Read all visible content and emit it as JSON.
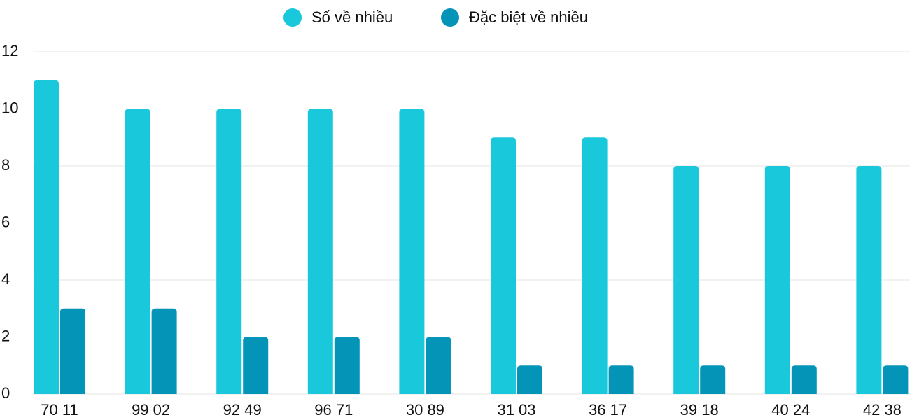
{
  "chart_data": {
    "type": "bar",
    "categories": [
      "70 11",
      "99 02",
      "92 49",
      "96 71",
      "30 89",
      "31 03",
      "36 17",
      "39 18",
      "40 24",
      "42 38"
    ],
    "series": [
      {
        "name": "Số về nhiều",
        "color": "#1ac8db",
        "values": [
          11,
          10,
          10,
          10,
          10,
          9,
          9,
          8,
          8,
          8
        ]
      },
      {
        "name": "Đặc biệt về nhiều",
        "color": "#0494b8",
        "values": [
          3,
          3,
          2,
          2,
          2,
          1,
          1,
          1,
          1,
          1
        ]
      }
    ],
    "ylim": [
      0,
      12
    ],
    "yticks": [
      0,
      2,
      4,
      6,
      8,
      10,
      12
    ],
    "grid": true,
    "legend": "top"
  }
}
